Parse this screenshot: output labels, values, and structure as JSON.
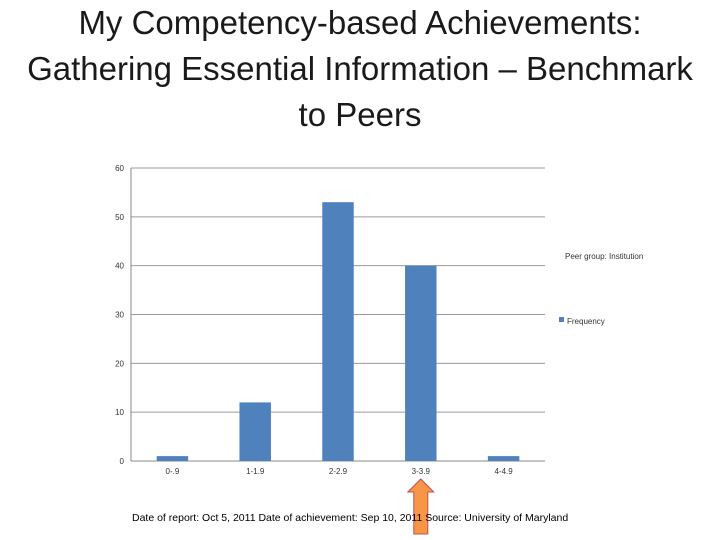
{
  "slide": {
    "title": "My Competency-based Achievements: Gathering Essential Information – Benchmark to Peers",
    "footer": "Date of report: Oct 5, 2011 Date of achievement: Sep 10, 2011 Source: University of Maryland"
  },
  "chart_data": {
    "type": "bar",
    "categories": [
      "0-.9",
      "1-1.9",
      "2-2.9",
      "3-3.9",
      "4-4.9"
    ],
    "series": [
      {
        "name": "Frequency",
        "values": [
          1,
          12,
          53,
          40,
          1
        ],
        "color": "#4f81bd"
      }
    ],
    "title": "",
    "xlabel": "",
    "ylabel": "",
    "ylim": [
      0,
      60
    ],
    "yticks": [
      0,
      10,
      20,
      30,
      40,
      50,
      60
    ],
    "grid": true,
    "legend": {
      "placement": "right",
      "entries": [
        "Peer group: Institution",
        "Frequency"
      ]
    },
    "annotation": {
      "type": "arrow-up",
      "category": "3-3.9",
      "color": "#f79646"
    }
  }
}
